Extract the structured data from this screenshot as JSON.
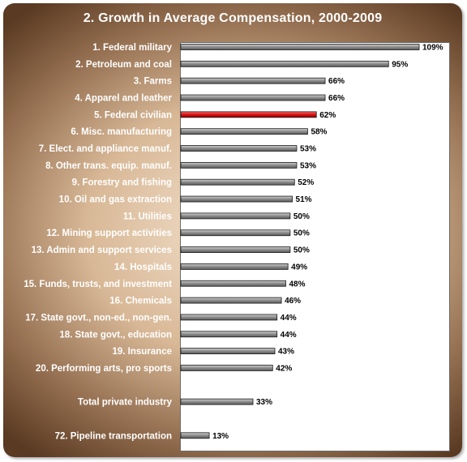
{
  "chart_data": {
    "type": "bar",
    "orientation": "horizontal",
    "title": "2. Growth in Average Compensation, 2000-2009",
    "xlabel": "",
    "ylabel": "",
    "xlim": [
      0,
      110
    ],
    "grid": false,
    "legend": "none",
    "colors": {
      "default": "#8c8c8c",
      "highlight": "#e01010"
    },
    "bars": [
      {
        "label": "1. Federal military",
        "value": 109,
        "value_label": "109%",
        "slot": 0
      },
      {
        "label": "2. Petroleum and coal",
        "value": 95,
        "value_label": "95%",
        "slot": 1
      },
      {
        "label": "3. Farms",
        "value": 66,
        "value_label": "66%",
        "slot": 2
      },
      {
        "label": "4. Apparel and leather",
        "value": 66,
        "value_label": "66%",
        "slot": 3
      },
      {
        "label": "5. Federal civilian",
        "value": 62,
        "value_label": "62%",
        "slot": 4,
        "highlight": true
      },
      {
        "label": "6. Misc. manufacturing",
        "value": 58,
        "value_label": "58%",
        "slot": 5
      },
      {
        "label": "7. Elect. and appliance manuf.",
        "value": 53,
        "value_label": "53%",
        "slot": 6
      },
      {
        "label": "8. Other trans. equip. manuf.",
        "value": 53,
        "value_label": "53%",
        "slot": 7
      },
      {
        "label": "9. Forestry and fishing",
        "value": 52,
        "value_label": "52%",
        "slot": 8
      },
      {
        "label": "10. Oil and gas extraction",
        "value": 51,
        "value_label": "51%",
        "slot": 9
      },
      {
        "label": "11. Utilities",
        "value": 50,
        "value_label": "50%",
        "slot": 10
      },
      {
        "label": "12. Mining support activities",
        "value": 50,
        "value_label": "50%",
        "slot": 11
      },
      {
        "label": "13. Admin and support services",
        "value": 50,
        "value_label": "50%",
        "slot": 12
      },
      {
        "label": "14. Hospitals",
        "value": 49,
        "value_label": "49%",
        "slot": 13
      },
      {
        "label": "15. Funds, trusts, and investment",
        "value": 48,
        "value_label": "48%",
        "slot": 14
      },
      {
        "label": "16. Chemicals",
        "value": 46,
        "value_label": "46%",
        "slot": 15
      },
      {
        "label": "17. State govt., non-ed., non-gen.",
        "value": 44,
        "value_label": "44%",
        "slot": 16
      },
      {
        "label": "18. State govt., education",
        "value": 44,
        "value_label": "44%",
        "slot": 17
      },
      {
        "label": "19. Insurance",
        "value": 43,
        "value_label": "43%",
        "slot": 18
      },
      {
        "label": "20. Performing arts, pro sports",
        "value": 42,
        "value_label": "42%",
        "slot": 19
      },
      {
        "label": "Total private industry",
        "value": 33,
        "value_label": "33%",
        "slot": 21
      },
      {
        "label": "72. Pipeline transportation",
        "value": 13,
        "value_label": "13%",
        "slot": 23
      }
    ]
  }
}
